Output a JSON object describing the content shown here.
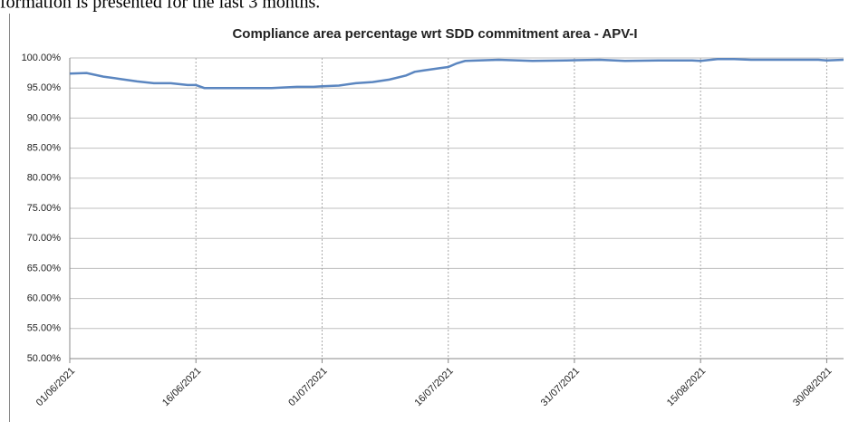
{
  "caption": "formation is presented for the last 3 months.",
  "chart_data": {
    "type": "line",
    "title": "Compliance area percentage wrt SDD commitment area - APV-I",
    "x": [
      "01/06/2021",
      "03/06/2021",
      "05/06/2021",
      "07/06/2021",
      "09/06/2021",
      "11/06/2021",
      "13/06/2021",
      "15/06/2021",
      "16/06/2021",
      "17/06/2021",
      "19/06/2021",
      "22/06/2021",
      "25/06/2021",
      "28/06/2021",
      "30/06/2021",
      "01/07/2021",
      "03/07/2021",
      "05/07/2021",
      "07/07/2021",
      "09/07/2021",
      "11/07/2021",
      "12/07/2021",
      "13/07/2021",
      "15/07/2021",
      "16/07/2021",
      "17/07/2021",
      "18/07/2021",
      "22/07/2021",
      "26/07/2021",
      "30/07/2021",
      "03/08/2021",
      "06/08/2021",
      "10/08/2021",
      "14/08/2021",
      "15/08/2021",
      "17/08/2021",
      "19/08/2021",
      "21/08/2021",
      "25/08/2021",
      "29/08/2021",
      "30/08/2021",
      "01/09/2021"
    ],
    "series": [
      {
        "name": "APV-I",
        "color": "#5b86c0",
        "values": [
          97.4,
          97.5,
          96.9,
          96.5,
          96.1,
          95.8,
          95.8,
          95.5,
          95.5,
          95.0,
          95.0,
          95.0,
          95.0,
          95.2,
          95.2,
          95.3,
          95.4,
          95.8,
          96.0,
          96.4,
          97.1,
          97.7,
          97.9,
          98.3,
          98.5,
          99.1,
          99.5,
          99.7,
          99.5,
          99.6,
          99.7,
          99.5,
          99.6,
          99.6,
          99.5,
          99.8,
          99.8,
          99.7,
          99.7,
          99.7,
          99.6,
          99.7
        ]
      }
    ],
    "xlim": [
      "01/06/2021",
      "01/09/2021"
    ],
    "xticks": [
      "01/06/2021",
      "16/06/2021",
      "01/07/2021",
      "16/07/2021",
      "31/07/2021",
      "15/08/2021",
      "30/08/2021"
    ],
    "ylim": [
      50,
      100
    ],
    "yticks": [
      {
        "value": 50,
        "label": "50.00%"
      },
      {
        "value": 55,
        "label": "55.00%"
      },
      {
        "value": 60,
        "label": "60.00%"
      },
      {
        "value": 65,
        "label": "65.00%"
      },
      {
        "value": 70,
        "label": "70.00%"
      },
      {
        "value": 75,
        "label": "75.00%"
      },
      {
        "value": 80,
        "label": "80.00%"
      },
      {
        "value": 85,
        "label": "85.00%"
      },
      {
        "value": 90,
        "label": "90.00%"
      },
      {
        "value": 95,
        "label": "95.00%"
      },
      {
        "value": 100,
        "label": "100.00%"
      }
    ],
    "grid": true
  }
}
